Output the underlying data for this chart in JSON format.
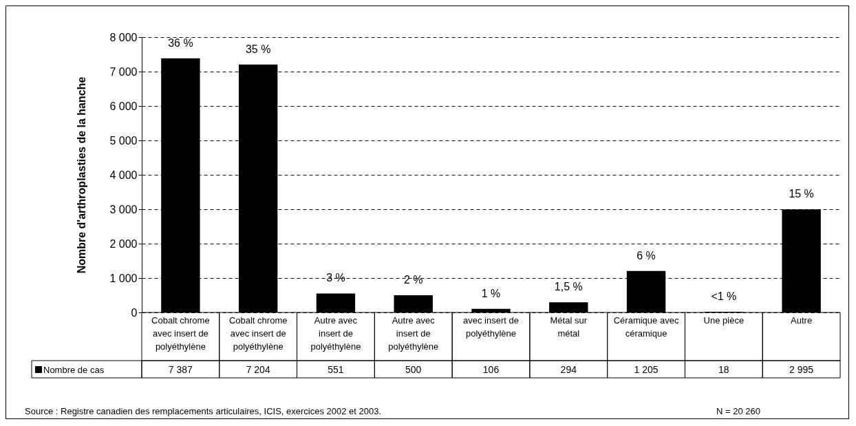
{
  "chart_data": {
    "type": "bar",
    "ylabel": "Nombre d'arthroplasties de la hanche",
    "categories": [
      "Cobalt chrome avec insert de polyéthylène",
      "Cobalt chrome avec insert de polyéthylène",
      "Autre avec insert de polyéthylène",
      "Autre avec insert de polyéthylène",
      "avec insert de polyéthylène",
      "Métal sur métal",
      "Céramique avec céramique",
      "Une pièce",
      "Autre"
    ],
    "series": [
      {
        "name": "Nombre de cas",
        "color": "#000000",
        "values": [
          7387,
          7204,
          551,
          500,
          106,
          294,
          1205,
          18,
          2995
        ],
        "value_labels": [
          "7 387",
          "7 204",
          "551",
          "500",
          "106",
          "294",
          "1 205",
          "18",
          "2 995"
        ]
      }
    ],
    "ylim": [
      0,
      8000
    ],
    "yticks": [
      0,
      {
        "value": 1000,
        "label": "1 000"
      },
      {
        "value": 2000,
        "label": "2 000"
      },
      {
        "value": 3000,
        "label": "3 000"
      },
      {
        "value": 4000,
        "label": "4 000"
      },
      {
        "value": 5000,
        "label": "5 000"
      },
      {
        "value": 6000,
        "label": "6 000"
      },
      {
        "value": 7000,
        "label": "7 000"
      },
      {
        "value": 8000,
        "label": "8 000"
      }
    ],
    "grid": "y",
    "legend": "bottom left",
    "annotations": [
      "36 %",
      "35 %",
      "3 %",
      "2 %",
      "1 %",
      "1,5 %",
      "6 %",
      "<1 %",
      "15 %",
      "Source : Registre canadien des remplacements articulaires, ICIS, exercices 2002 et 2003.",
      "N = 20 260"
    ]
  }
}
